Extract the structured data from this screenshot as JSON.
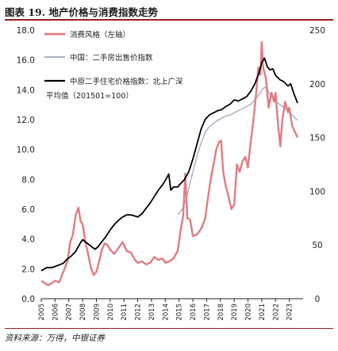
{
  "figure": {
    "title": "图表 19. 地产价格与消费指数走势",
    "source": "资料来源：万得，中银证券"
  },
  "colors": {
    "consumption": "#e07b84",
    "secondhand_sales": "#aab3c6",
    "cr_index": "#000000",
    "accent": "#9b1c24"
  },
  "chart_data": {
    "type": "line",
    "title": "",
    "xlabel": "",
    "x_ticks": [
      "2005",
      "2006",
      "2007",
      "2008",
      "2009",
      "2010",
      "2011",
      "2012",
      "2013",
      "2014",
      "2015",
      "2016",
      "2017",
      "2018",
      "2019",
      "2020",
      "2021",
      "2022",
      "2023"
    ],
    "x_range": [
      2005.0,
      2024.0
    ],
    "y_left": {
      "range": [
        0,
        18
      ],
      "ticks": [
        "0.0",
        "2.0",
        "4.0",
        "6.0",
        "8.0",
        "10.0",
        "12.0",
        "14.0",
        "16.0",
        "18.0"
      ]
    },
    "y_right": {
      "range": [
        0,
        250
      ],
      "ticks": [
        "0",
        "50",
        "100",
        "150",
        "200",
        "250"
      ]
    },
    "legend": {
      "placement": "top-left"
    },
    "series": [
      {
        "name": "消费风格（左轴）",
        "key": "consumption",
        "axis": "left",
        "points": [
          [
            2005.0,
            1.2
          ],
          [
            2005.5,
            0.9
          ],
          [
            2006.0,
            1.2
          ],
          [
            2006.3,
            1.1
          ],
          [
            2006.6,
            1.8
          ],
          [
            2006.9,
            2.5
          ],
          [
            2007.1,
            3.8
          ],
          [
            2007.3,
            4.3
          ],
          [
            2007.5,
            5.6
          ],
          [
            2007.7,
            6.1
          ],
          [
            2007.85,
            5.2
          ],
          [
            2008.0,
            5.0
          ],
          [
            2008.2,
            3.8
          ],
          [
            2008.4,
            3.0
          ],
          [
            2008.6,
            2.1
          ],
          [
            2008.8,
            1.6
          ],
          [
            2009.0,
            1.8
          ],
          [
            2009.2,
            2.5
          ],
          [
            2009.4,
            3.3
          ],
          [
            2009.6,
            3.7
          ],
          [
            2009.8,
            3.6
          ],
          [
            2010.0,
            3.3
          ],
          [
            2010.3,
            3.0
          ],
          [
            2010.6,
            3.4
          ],
          [
            2010.9,
            3.8
          ],
          [
            2011.2,
            3.2
          ],
          [
            2011.5,
            3.1
          ],
          [
            2011.8,
            2.6
          ],
          [
            2012.0,
            2.4
          ],
          [
            2012.3,
            2.5
          ],
          [
            2012.6,
            2.3
          ],
          [
            2012.9,
            2.4
          ],
          [
            2013.2,
            2.8
          ],
          [
            2013.5,
            2.6
          ],
          [
            2013.8,
            2.7
          ],
          [
            2014.0,
            2.4
          ],
          [
            2014.3,
            2.5
          ],
          [
            2014.6,
            2.7
          ],
          [
            2014.9,
            3.2
          ],
          [
            2015.1,
            4.5
          ],
          [
            2015.3,
            5.6
          ],
          [
            2015.45,
            8.4
          ],
          [
            2015.6,
            5.4
          ],
          [
            2015.8,
            5.3
          ],
          [
            2016.0,
            4.2
          ],
          [
            2016.3,
            4.3
          ],
          [
            2016.6,
            4.7
          ],
          [
            2016.9,
            5.4
          ],
          [
            2017.1,
            6.8
          ],
          [
            2017.3,
            8.0
          ],
          [
            2017.5,
            9.0
          ],
          [
            2017.7,
            10.0
          ],
          [
            2017.9,
            10.5
          ],
          [
            2018.05,
            10.6
          ],
          [
            2018.2,
            8.5
          ],
          [
            2018.4,
            7.5
          ],
          [
            2018.6,
            6.8
          ],
          [
            2018.8,
            6.0
          ],
          [
            2019.0,
            6.3
          ],
          [
            2019.2,
            9.0
          ],
          [
            2019.4,
            8.5
          ],
          [
            2019.6,
            9.2
          ],
          [
            2019.8,
            9.5
          ],
          [
            2020.0,
            8.8
          ],
          [
            2020.2,
            10.5
          ],
          [
            2020.4,
            12.0
          ],
          [
            2020.6,
            13.8
          ],
          [
            2020.75,
            15.5
          ],
          [
            2020.9,
            15.0
          ],
          [
            2021.0,
            17.2
          ],
          [
            2021.1,
            15.5
          ],
          [
            2021.3,
            14.8
          ],
          [
            2021.5,
            12.8
          ],
          [
            2021.7,
            13.8
          ],
          [
            2021.9,
            13.2
          ],
          [
            2022.0,
            13.8
          ],
          [
            2022.2,
            11.5
          ],
          [
            2022.35,
            10.2
          ],
          [
            2022.5,
            12.0
          ],
          [
            2022.7,
            13.2
          ],
          [
            2022.9,
            12.5
          ],
          [
            2023.0,
            12.8
          ],
          [
            2023.2,
            11.6
          ],
          [
            2023.4,
            11.2
          ],
          [
            2023.6,
            10.8
          ]
        ]
      },
      {
        "name": "中国：二手房出售价指数",
        "key": "secondhand_sales",
        "axis": "right",
        "points": [
          [
            2014.9,
            78
          ],
          [
            2015.1,
            81
          ],
          [
            2015.3,
            85
          ],
          [
            2015.5,
            92
          ],
          [
            2015.7,
            102
          ],
          [
            2015.9,
            113
          ],
          [
            2016.1,
            123
          ],
          [
            2016.3,
            133
          ],
          [
            2016.6,
            145
          ],
          [
            2016.9,
            155
          ],
          [
            2017.2,
            160
          ],
          [
            2017.5,
            163
          ],
          [
            2017.8,
            166
          ],
          [
            2018.1,
            168
          ],
          [
            2018.4,
            170
          ],
          [
            2018.7,
            171
          ],
          [
            2019.0,
            173
          ],
          [
            2019.3,
            175
          ],
          [
            2019.6,
            177
          ],
          [
            2019.9,
            179
          ],
          [
            2020.2,
            181
          ],
          [
            2020.5,
            185
          ],
          [
            2020.8,
            190
          ],
          [
            2021.0,
            194
          ],
          [
            2021.2,
            197
          ],
          [
            2021.4,
            195
          ],
          [
            2021.6,
            190
          ],
          [
            2021.8,
            187
          ],
          [
            2022.0,
            184
          ],
          [
            2022.3,
            181
          ],
          [
            2022.6,
            178
          ],
          [
            2022.9,
            175
          ],
          [
            2023.2,
            171
          ],
          [
            2023.6,
            166
          ]
        ]
      },
      {
        "name": "中原二手住宅价格指数：北上广深平均值（201501=100）",
        "key": "cr_index",
        "axis": "right",
        "points": [
          [
            2005.0,
            26
          ],
          [
            2005.4,
            29
          ],
          [
            2005.8,
            29
          ],
          [
            2006.2,
            31
          ],
          [
            2006.6,
            33
          ],
          [
            2006.9,
            37
          ],
          [
            2007.2,
            40
          ],
          [
            2007.5,
            44
          ],
          [
            2007.8,
            51
          ],
          [
            2008.0,
            55
          ],
          [
            2008.3,
            52
          ],
          [
            2008.6,
            49
          ],
          [
            2008.9,
            46
          ],
          [
            2009.1,
            48
          ],
          [
            2009.4,
            53
          ],
          [
            2009.7,
            58
          ],
          [
            2010.0,
            64
          ],
          [
            2010.3,
            69
          ],
          [
            2010.6,
            73
          ],
          [
            2010.9,
            76
          ],
          [
            2011.2,
            78
          ],
          [
            2011.5,
            78
          ],
          [
            2011.8,
            77
          ],
          [
            2012.0,
            76
          ],
          [
            2012.3,
            79
          ],
          [
            2012.6,
            84
          ],
          [
            2012.9,
            89
          ],
          [
            2013.2,
            95
          ],
          [
            2013.5,
            101
          ],
          [
            2013.8,
            106
          ],
          [
            2014.0,
            110
          ],
          [
            2014.25,
            116
          ],
          [
            2014.4,
            101
          ],
          [
            2014.6,
            104
          ],
          [
            2014.9,
            104
          ],
          [
            2015.1,
            107
          ],
          [
            2015.4,
            111
          ],
          [
            2015.7,
            118
          ],
          [
            2016.0,
            130
          ],
          [
            2016.3,
            144
          ],
          [
            2016.6,
            158
          ],
          [
            2016.9,
            167
          ],
          [
            2017.2,
            171
          ],
          [
            2017.5,
            173
          ],
          [
            2017.8,
            175
          ],
          [
            2018.1,
            176
          ],
          [
            2018.4,
            179
          ],
          [
            2018.7,
            181
          ],
          [
            2019.0,
            185
          ],
          [
            2019.3,
            184
          ],
          [
            2019.6,
            186
          ],
          [
            2019.9,
            188
          ],
          [
            2020.2,
            193
          ],
          [
            2020.5,
            200
          ],
          [
            2020.8,
            210
          ],
          [
            2021.0,
            220
          ],
          [
            2021.2,
            224
          ],
          [
            2021.4,
            216
          ],
          [
            2021.6,
            213
          ],
          [
            2021.8,
            214
          ],
          [
            2022.0,
            208
          ],
          [
            2022.3,
            204
          ],
          [
            2022.6,
            202
          ],
          [
            2022.9,
            198
          ],
          [
            2023.1,
            200
          ],
          [
            2023.3,
            192
          ],
          [
            2023.6,
            182
          ]
        ]
      }
    ]
  }
}
